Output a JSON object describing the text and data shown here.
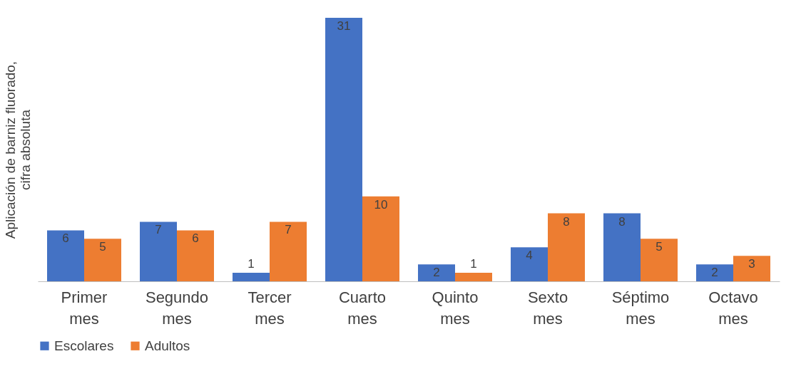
{
  "chart_data": {
    "type": "bar",
    "ylabel": "Aplicación de barniz fluorado, cifra absoluta",
    "categories": [
      "Primer mes",
      "Segundo mes",
      "Tercer mes",
      "Cuarto mes",
      "Quinto mes",
      "Sexto mes",
      "Séptimo mes",
      "Octavo mes"
    ],
    "series": [
      {
        "name": "Escolares",
        "color": "#4472c4",
        "values": [
          6,
          7,
          1,
          31,
          2,
          4,
          8,
          2
        ]
      },
      {
        "name": "Adultos",
        "color": "#ed7d31",
        "values": [
          5,
          6,
          7,
          10,
          1,
          8,
          5,
          3
        ]
      }
    ],
    "data_labels": true,
    "tick_labels": "x",
    "grid": false,
    "legend": "bottom"
  }
}
